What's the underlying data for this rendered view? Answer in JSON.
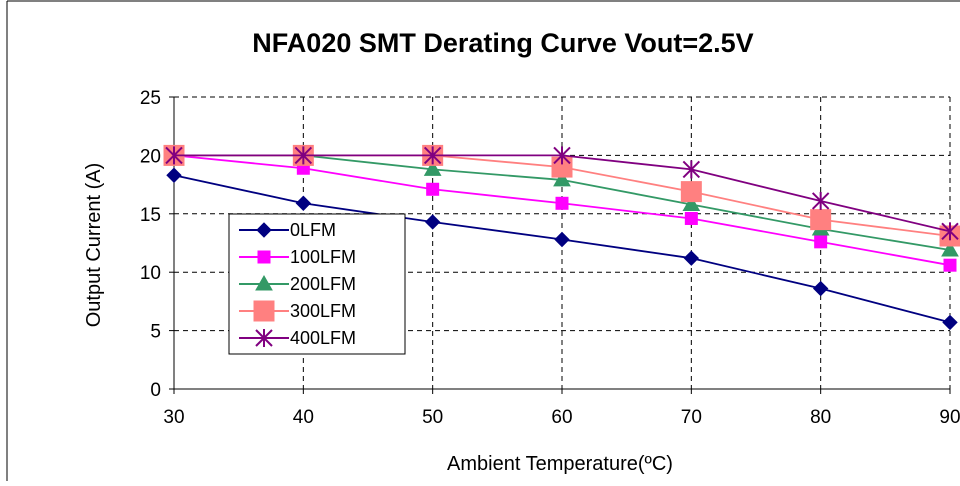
{
  "chart_data": {
    "type": "line",
    "title": "NFA020 SMT Derating Curve Vout=2.5V",
    "xlabel": "Ambient Temperature(ºC)",
    "ylabel": "Output Current (A)",
    "x": [
      30,
      40,
      50,
      60,
      70,
      80,
      90
    ],
    "xticks": [
      "30",
      "40",
      "50",
      "60",
      "70",
      "80",
      "90"
    ],
    "yticks": [
      "0",
      "5",
      "10",
      "15",
      "20",
      "25"
    ],
    "xlim": [
      30,
      90
    ],
    "ylim": [
      0,
      25
    ],
    "grid": "dashed",
    "legend_position": "left-center",
    "series": [
      {
        "name": "0LFM",
        "color": "#000080",
        "marker": "diamond",
        "values": [
          18.3,
          15.9,
          14.3,
          12.8,
          11.2,
          8.6,
          5.7
        ]
      },
      {
        "name": "100LFM",
        "color": "#FF00FF",
        "marker": "square",
        "values": [
          20,
          18.9,
          17.1,
          15.9,
          14.6,
          12.6,
          10.6
        ]
      },
      {
        "name": "200LFM",
        "color": "#339966",
        "marker": "triangle",
        "values": [
          20,
          20,
          18.8,
          17.9,
          15.8,
          13.7,
          11.9
        ]
      },
      {
        "name": "300LFM",
        "color": "#FF8080",
        "marker": "square-large",
        "values": [
          20,
          20,
          20,
          19,
          16.9,
          14.5,
          13.1
        ]
      },
      {
        "name": "400LFM",
        "color": "#800080",
        "marker": "star",
        "values": [
          20,
          20,
          20,
          20,
          18.8,
          16.1,
          13.5
        ]
      }
    ]
  }
}
